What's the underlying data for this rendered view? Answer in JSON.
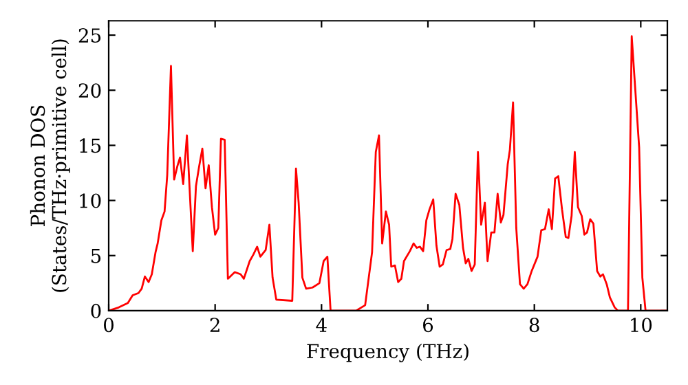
{
  "chart_data": {
    "type": "line",
    "xlabel": "Frequency (THz)",
    "ylabel": "Phonon DOS\n(States/THz·primitive cell)",
    "xlim": [
      0,
      10.5
    ],
    "ylim": [
      0,
      26.3
    ],
    "xticks": [
      0,
      2,
      4,
      6,
      8,
      10
    ],
    "yticks": [
      0,
      5,
      10,
      15,
      20,
      25
    ],
    "grid": false,
    "marker": "none",
    "line_style": "solid",
    "series": [
      {
        "color": "#ff0000",
        "x": [
          0.0,
          0.19,
          0.36,
          0.45,
          0.56,
          0.62,
          0.68,
          0.75,
          0.81,
          0.88,
          0.92,
          0.99,
          1.05,
          1.1,
          1.17,
          1.23,
          1.29,
          1.34,
          1.4,
          1.47,
          1.58,
          1.64,
          1.7,
          1.76,
          1.82,
          1.88,
          1.94,
          2.0,
          2.06,
          2.11,
          2.18,
          2.24,
          2.37,
          2.48,
          2.54,
          2.65,
          2.72,
          2.79,
          2.85,
          2.95,
          3.02,
          3.08,
          3.15,
          3.45,
          3.52,
          3.57,
          3.64,
          3.71,
          3.83,
          3.96,
          4.04,
          4.11,
          4.17,
          4.65,
          4.82,
          4.95,
          5.02,
          5.08,
          5.14,
          5.21,
          5.27,
          5.31,
          5.38,
          5.44,
          5.5,
          5.55,
          5.66,
          5.73,
          5.79,
          5.85,
          5.91,
          5.97,
          6.03,
          6.1,
          6.16,
          6.22,
          6.28,
          6.35,
          6.42,
          6.46,
          6.52,
          6.59,
          6.66,
          6.71,
          6.76,
          6.82,
          6.88,
          6.94,
          7.0,
          7.07,
          7.12,
          7.19,
          7.25,
          7.31,
          7.37,
          7.42,
          7.5,
          7.54,
          7.6,
          7.66,
          7.73,
          7.8,
          7.87,
          7.95,
          8.06,
          8.13,
          8.2,
          8.27,
          8.33,
          8.39,
          8.45,
          8.52,
          8.59,
          8.64,
          8.7,
          8.76,
          8.82,
          8.89,
          8.94,
          8.99,
          9.05,
          9.11,
          9.18,
          9.24,
          9.29,
          9.36,
          9.42,
          9.51,
          9.57,
          9.76,
          9.83,
          9.97,
          10.03,
          10.09,
          10.5
        ],
        "values": [
          0.0,
          0.3,
          0.7,
          1.4,
          1.6,
          2.0,
          3.1,
          2.6,
          3.3,
          5.3,
          6.1,
          8.2,
          9.0,
          12.3,
          22.2,
          11.9,
          13.1,
          13.9,
          11.5,
          15.9,
          5.4,
          11.3,
          13.1,
          14.7,
          11.1,
          13.2,
          9.4,
          6.9,
          7.5,
          15.6,
          15.5,
          2.9,
          3.5,
          3.3,
          2.9,
          4.5,
          5.1,
          5.8,
          4.9,
          5.5,
          7.8,
          3.0,
          1.0,
          0.9,
          12.9,
          9.8,
          3.0,
          2.0,
          2.1,
          2.5,
          4.5,
          4.9,
          0.0,
          0.0,
          0.5,
          5.3,
          14.4,
          15.9,
          6.1,
          9.0,
          7.8,
          4.0,
          4.1,
          2.6,
          2.9,
          4.5,
          5.4,
          6.1,
          5.7,
          5.8,
          5.4,
          8.2,
          9.2,
          10.1,
          5.9,
          4.0,
          4.2,
          5.5,
          5.6,
          6.5,
          10.6,
          9.6,
          5.7,
          4.3,
          4.7,
          3.6,
          4.2,
          14.4,
          7.8,
          9.8,
          4.5,
          7.1,
          7.1,
          10.6,
          8.0,
          8.7,
          13.3,
          14.6,
          18.9,
          7.5,
          2.4,
          2.0,
          2.4,
          3.6,
          4.9,
          7.3,
          7.4,
          9.2,
          7.4,
          12.0,
          12.2,
          9.2,
          6.7,
          6.6,
          8.6,
          14.4,
          9.4,
          8.6,
          6.9,
          7.1,
          8.3,
          7.9,
          3.6,
          3.1,
          3.3,
          2.4,
          1.2,
          0.3,
          0.0,
          0.0,
          24.9,
          14.8,
          3.0,
          0.0,
          0.0
        ]
      }
    ]
  }
}
